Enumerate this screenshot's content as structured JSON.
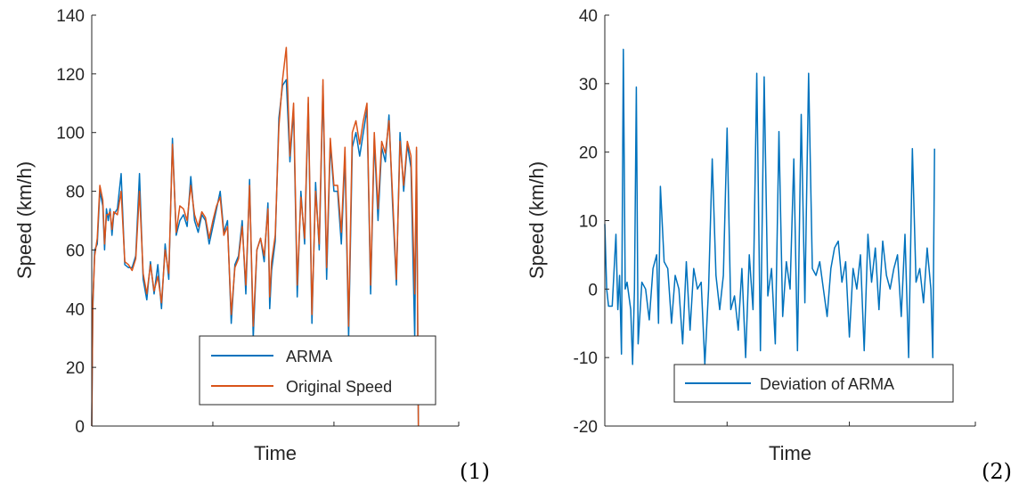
{
  "colors": {
    "arma": "#0072BD",
    "original": "#D95319",
    "axis": "#262626"
  },
  "chart_data": [
    {
      "type": "line",
      "panel_tag": "(1)",
      "xlabel": "Time",
      "ylabel": "Speed (km/h)",
      "ylim": [
        0,
        140
      ],
      "yticks": [
        "0",
        "20",
        "40",
        "60",
        "80",
        "100",
        "120",
        "140"
      ],
      "xlim": [
        0,
        100
      ],
      "xticks": [
        33,
        66,
        100
      ],
      "grid": false,
      "legend_position": "bottom-right",
      "series": [
        {
          "name": "ARMA",
          "color_key": "arma",
          "x": [
            0,
            0.3,
            0.8,
            1.5,
            2.2,
            3,
            3.5,
            4,
            4.5,
            5,
            5.5,
            6,
            7,
            8,
            9,
            10,
            11,
            12,
            13,
            14,
            15,
            16,
            17,
            18,
            19,
            20,
            21,
            22,
            23,
            24,
            25,
            26,
            27,
            28,
            29,
            30,
            31,
            32,
            33,
            34,
            35,
            36,
            37,
            38,
            39,
            40,
            41,
            42,
            43,
            44,
            45,
            46,
            47,
            48,
            48.5,
            49,
            50,
            51,
            52,
            53,
            54,
            55,
            56,
            57,
            58,
            59,
            60,
            61,
            62,
            63,
            64,
            65,
            66,
            67,
            68,
            69,
            70,
            71,
            72,
            73,
            74,
            75,
            76,
            77,
            78,
            79,
            80,
            81,
            82,
            83,
            84,
            85,
            86,
            87,
            88,
            88.5,
            89
          ],
          "values": [
            0,
            40,
            60,
            62,
            80,
            75,
            60,
            74,
            70,
            74,
            65,
            72,
            74,
            86,
            55,
            54,
            54,
            58,
            86,
            50,
            43,
            56,
            45,
            55,
            40,
            62,
            50,
            98,
            65,
            70,
            72,
            68,
            85,
            70,
            66,
            72,
            70,
            62,
            68,
            74,
            80,
            66,
            70,
            35,
            55,
            58,
            70,
            45,
            84,
            30,
            60,
            64,
            56,
            76,
            40,
            53,
            63,
            105,
            116,
            118,
            90,
            108,
            44,
            80,
            62,
            110,
            35,
            83,
            60,
            116,
            50,
            96,
            80,
            80,
            62,
            92,
            30,
            95,
            100,
            92,
            100,
            108,
            45,
            98,
            70,
            95,
            90,
            106,
            75,
            48,
            100,
            80,
            96,
            88,
            30,
            94,
            0
          ]
        },
        {
          "name": "Original Speed",
          "color_key": "original",
          "x": [
            0,
            0.3,
            0.8,
            1.5,
            2.2,
            3,
            3.5,
            4,
            4.5,
            5,
            5.5,
            6,
            7,
            8,
            9,
            10,
            11,
            12,
            13,
            14,
            15,
            16,
            17,
            18,
            19,
            20,
            21,
            22,
            23,
            24,
            25,
            26,
            27,
            28,
            29,
            30,
            31,
            32,
            33,
            34,
            35,
            36,
            37,
            38,
            39,
            40,
            41,
            42,
            43,
            44,
            45,
            46,
            47,
            48,
            48.5,
            49,
            50,
            51,
            52,
            53,
            54,
            55,
            56,
            57,
            58,
            59,
            60,
            61,
            62,
            63,
            64,
            65,
            66,
            67,
            68,
            69,
            70,
            71,
            72,
            73,
            74,
            75,
            76,
            77,
            78,
            79,
            80,
            81,
            82,
            83,
            84,
            85,
            86,
            87,
            88,
            88.5,
            89
          ],
          "values": [
            0,
            42,
            58,
            64,
            82,
            77,
            62,
            72,
            72,
            73,
            67,
            73,
            72,
            80,
            56,
            55,
            53,
            57,
            80,
            52,
            45,
            55,
            46,
            51,
            42,
            60,
            52,
            96,
            66,
            75,
            74,
            70,
            82,
            72,
            68,
            73,
            71,
            64,
            70,
            75,
            78,
            65,
            68,
            38,
            54,
            57,
            68,
            48,
            82,
            34,
            60,
            64,
            58,
            74,
            44,
            56,
            65,
            102,
            118,
            129,
            92,
            110,
            48,
            78,
            64,
            112,
            38,
            80,
            62,
            118,
            54,
            98,
            82,
            82,
            66,
            95,
            34,
            100,
            104,
            96,
            104,
            110,
            48,
            100,
            74,
            97,
            93,
            104,
            78,
            50,
            97,
            82,
            97,
            92,
            45,
            95,
            0
          ]
        }
      ]
    },
    {
      "type": "line",
      "panel_tag": "(2)",
      "xlabel": "Time",
      "ylabel": "Speed (km/h)",
      "ylim": [
        -20,
        40
      ],
      "yticks": [
        "-20",
        "-10",
        "0",
        "10",
        "20",
        "30",
        "40"
      ],
      "xlim": [
        0,
        100
      ],
      "xticks": [
        33,
        66,
        100
      ],
      "grid": false,
      "legend_position": "bottom-right",
      "series": [
        {
          "name": "Deviation of ARMA",
          "color_key": "arma",
          "x": [
            0,
            0.5,
            1,
            2,
            3,
            3.5,
            4,
            4.5,
            5,
            5.5,
            6,
            7,
            7.5,
            8,
            8.5,
            9,
            10,
            11,
            12,
            13,
            14,
            14.5,
            15,
            16,
            17,
            18,
            19,
            20,
            21,
            22,
            23,
            24,
            25,
            26,
            27,
            28,
            29,
            30,
            31,
            32,
            33,
            34,
            35,
            36,
            37,
            38,
            39,
            40,
            41,
            42,
            43,
            44,
            45,
            46,
            47,
            48,
            49,
            50,
            51,
            52,
            53,
            54,
            55,
            56,
            57,
            58,
            59,
            60,
            61,
            62,
            63,
            64,
            65,
            66,
            67,
            68,
            69,
            70,
            71,
            72,
            73,
            74,
            75,
            76,
            77,
            78,
            79,
            80,
            81,
            82,
            83,
            84,
            85,
            86,
            87,
            88,
            88.5,
            89
          ],
          "values": [
            9.5,
            0,
            -2.5,
            -2.5,
            8,
            -3,
            2,
            -9.5,
            35,
            0,
            1,
            -3,
            -11,
            0,
            29.5,
            -8,
            1,
            0,
            -4.5,
            3,
            5,
            -5,
            15,
            4,
            3,
            -5,
            2,
            0,
            -8,
            4,
            -6,
            3,
            0,
            1,
            -11,
            0,
            19,
            2,
            -3,
            2,
            23.5,
            -3,
            -1,
            -6,
            3,
            -10,
            5,
            -3,
            31.5,
            -9,
            31,
            -1,
            3,
            -8,
            23,
            -4,
            4,
            0,
            19,
            -9,
            25.5,
            -2,
            31.5,
            3,
            2,
            4,
            0,
            -4,
            3,
            6,
            7,
            1,
            4,
            -7,
            3,
            0,
            5,
            -9,
            8,
            1,
            6,
            -3,
            7,
            2,
            0,
            3,
            5,
            -4,
            8,
            -10,
            20.5,
            1,
            3,
            -2,
            6,
            0,
            -10,
            20.5
          ]
        }
      ]
    }
  ]
}
